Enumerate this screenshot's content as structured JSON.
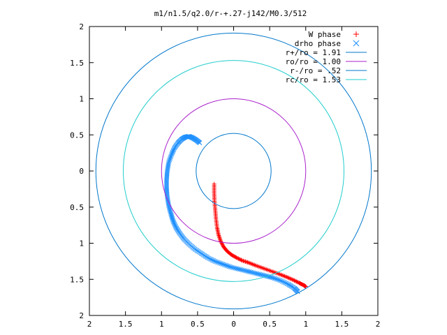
{
  "chart_data": {
    "type": "scatter",
    "title": "m1/n1.5/q2.0/r-+.27-j142/M0.3/512",
    "xlabel": "",
    "ylabel": "",
    "xlim": [
      -2,
      2
    ],
    "ylim": [
      -2,
      2
    ],
    "x_ticks": [
      -2,
      -1.5,
      -1,
      -0.5,
      0,
      0.5,
      1,
      1.5,
      2
    ],
    "y_ticks": [
      -2,
      -1.5,
      -1,
      -0.5,
      0,
      0.5,
      1,
      1.5,
      2
    ],
    "x_tick_labels": [
      "2",
      "1.5",
      "1",
      "0.5",
      "0",
      "0.5",
      "1",
      "1.5",
      "2"
    ],
    "y_tick_labels": [
      "2",
      "1.5",
      "1",
      "0.5",
      "0",
      "0.5",
      "1",
      "1.5",
      "2"
    ],
    "grid": false,
    "legend_position": "top-right",
    "series": [
      {
        "name": "W phase",
        "kind": "points",
        "marker": "plus",
        "color": "#ff0000",
        "x": [
          -0.27,
          -0.27,
          -0.265,
          -0.255,
          -0.245,
          -0.23,
          -0.21,
          -0.18,
          -0.14,
          -0.09,
          -0.03,
          0.04,
          0.12,
          0.21,
          0.31,
          0.42,
          0.53,
          0.64,
          0.74,
          0.83,
          0.91,
          0.97,
          1.0
        ],
        "y": [
          -0.18,
          -0.3,
          -0.42,
          -0.54,
          -0.66,
          -0.78,
          -0.88,
          -0.97,
          -1.05,
          -1.11,
          -1.16,
          -1.2,
          -1.24,
          -1.27,
          -1.31,
          -1.35,
          -1.39,
          -1.43,
          -1.47,
          -1.51,
          -1.55,
          -1.58,
          -1.6
        ]
      },
      {
        "name": "drho phase",
        "kind": "points",
        "marker": "cross",
        "color": "#1e90ff",
        "x": [
          -0.47,
          -0.52,
          -0.57,
          -0.62,
          -0.67,
          -0.72,
          -0.77,
          -0.82,
          -0.86,
          -0.9,
          -0.92,
          -0.93,
          -0.93,
          -0.92,
          -0.9,
          -0.87,
          -0.84,
          -0.8,
          -0.75,
          -0.69,
          -0.62,
          -0.54,
          -0.45,
          -0.36,
          -0.26,
          -0.15,
          -0.04,
          0.08,
          0.2,
          0.32,
          0.44,
          0.55,
          0.66,
          0.76,
          0.84,
          0.89
        ],
        "y": [
          0.39,
          0.43,
          0.46,
          0.48,
          0.47,
          0.44,
          0.39,
          0.32,
          0.23,
          0.12,
          0.0,
          -0.12,
          -0.24,
          -0.36,
          -0.48,
          -0.59,
          -0.69,
          -0.78,
          -0.86,
          -0.94,
          -1.01,
          -1.08,
          -1.14,
          -1.2,
          -1.25,
          -1.29,
          -1.33,
          -1.36,
          -1.39,
          -1.42,
          -1.45,
          -1.48,
          -1.52,
          -1.57,
          -1.62,
          -1.67
        ]
      },
      {
        "name": "r+/ro = 1.91",
        "kind": "circle",
        "radius": 1.91,
        "color": "#0077cc"
      },
      {
        "name": "ro/ro = 1.00",
        "kind": "circle",
        "radius": 1.0,
        "color": "#aa22cc"
      },
      {
        "name": "r-/ro = .52",
        "kind": "circle",
        "radius": 0.52,
        "color": "#0077cc"
      },
      {
        "name": "rc/ro = 1.53",
        "kind": "circle",
        "radius": 1.53,
        "color": "#22cccc"
      }
    ]
  }
}
